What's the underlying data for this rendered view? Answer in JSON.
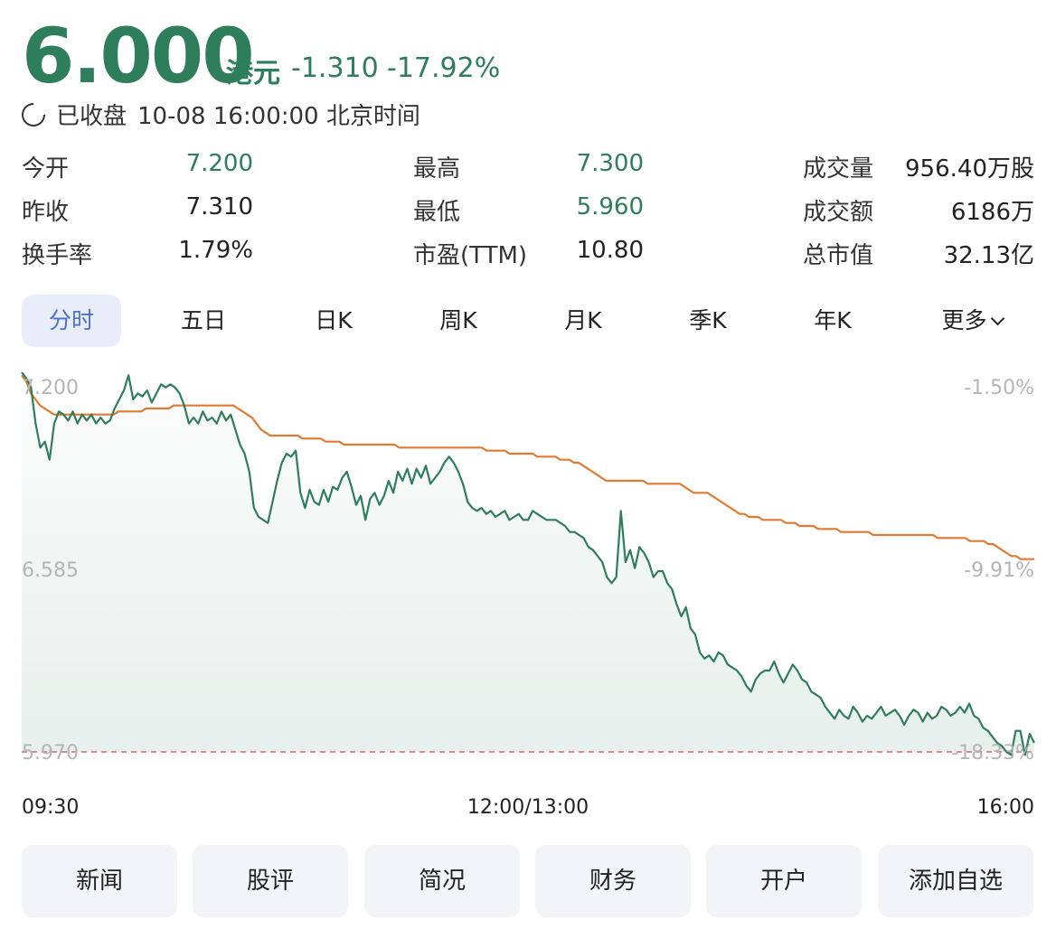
{
  "header": {
    "price": "6.000",
    "currency": "港元",
    "change": "-1.310",
    "change_pct": "-17.92%",
    "status": "已收盘",
    "datetime": "10-08 16:00:00 北京时间"
  },
  "stats": [
    {
      "label": "今开",
      "value": "7.200",
      "color": "#2e7d5b"
    },
    {
      "label": "最高",
      "value": "7.300",
      "color": "#2e7d5b"
    },
    {
      "label": "成交量",
      "value": "956.40万股",
      "color": "#222222"
    },
    {
      "label": "昨收",
      "value": "7.310",
      "color": "#222222"
    },
    {
      "label": "最低",
      "value": "5.960",
      "color": "#2e7d5b"
    },
    {
      "label": "成交额",
      "value": "6186万",
      "color": "#222222"
    },
    {
      "label": "换手率",
      "value": "1.79%",
      "color": "#222222"
    },
    {
      "label": "市盈(TTM)",
      "value": "10.80",
      "color": "#222222"
    },
    {
      "label": "总市值",
      "value": "32.13亿",
      "color": "#222222"
    }
  ],
  "tabs": [
    "分时",
    "五日",
    "日K",
    "周K",
    "月K",
    "季K",
    "年K",
    "更多"
  ],
  "active_tab": 0,
  "chart_data": {
    "type": "line",
    "x_labels": [
      "09:30",
      "12:00/13:00",
      "16:00"
    ],
    "y_left_labels": [
      "7.200",
      "6.585",
      "5.970"
    ],
    "y_right_labels": [
      "-1.50%",
      "-9.91%",
      "-18.33%"
    ],
    "ylim": [
      5.97,
      7.2
    ],
    "reference_price": 5.97,
    "series": [
      {
        "values": [
          7.23,
          7.21,
          7.18,
          7.06,
          6.98,
          7.0,
          6.94,
          7.06,
          7.1,
          7.09,
          7.07,
          7.1,
          7.06,
          7.09,
          7.07,
          7.09,
          7.06,
          7.08,
          7.06,
          7.07,
          7.11,
          7.14,
          7.17,
          7.22,
          7.14,
          7.16,
          7.15,
          7.17,
          7.13,
          7.16,
          7.19,
          7.18,
          7.19,
          7.18,
          7.16,
          7.12,
          7.06,
          7.08,
          7.06,
          7.1,
          7.07,
          7.08,
          7.06,
          7.1,
          7.07,
          7.09,
          7.04,
          6.99,
          6.96,
          6.9,
          6.78,
          6.75,
          6.74,
          6.73,
          6.8,
          6.87,
          6.93,
          6.96,
          6.95,
          6.97,
          6.83,
          6.78,
          6.84,
          6.8,
          6.79,
          6.84,
          6.8,
          6.85,
          6.84,
          6.88,
          6.9,
          6.85,
          6.79,
          6.82,
          6.74,
          6.81,
          6.83,
          6.79,
          6.82,
          6.87,
          6.83,
          6.9,
          6.87,
          6.91,
          6.86,
          6.91,
          6.88,
          6.92,
          6.86,
          6.88,
          6.9,
          6.93,
          6.95,
          6.93,
          6.9,
          6.86,
          6.8,
          6.78,
          6.77,
          6.78,
          6.76,
          6.77,
          6.75,
          6.76,
          6.77,
          6.74,
          6.75,
          6.76,
          6.74,
          6.74,
          6.77,
          6.76,
          6.75,
          6.74,
          6.74,
          6.74,
          6.73,
          6.72,
          6.7,
          6.7,
          6.69,
          6.68,
          6.65,
          6.64,
          6.62,
          6.6,
          6.55,
          6.53,
          6.55,
          6.77,
          6.6,
          6.64,
          6.58,
          6.65,
          6.63,
          6.6,
          6.55,
          6.57,
          6.57,
          6.53,
          6.51,
          6.46,
          6.42,
          6.45,
          6.38,
          6.36,
          6.3,
          6.28,
          6.29,
          6.27,
          6.3,
          6.29,
          6.26,
          6.25,
          6.24,
          6.22,
          6.19,
          6.17,
          6.21,
          6.23,
          6.24,
          6.24,
          6.27,
          6.23,
          6.2,
          6.23,
          6.26,
          6.24,
          6.21,
          6.2,
          6.17,
          6.16,
          6.15,
          6.12,
          6.1,
          6.08,
          6.11,
          6.09,
          6.08,
          6.12,
          6.1,
          6.07,
          6.09,
          6.08,
          6.1,
          6.12,
          6.09,
          6.1,
          6.11,
          6.09,
          6.06,
          6.09,
          6.11,
          6.1,
          6.07,
          6.1,
          6.08,
          6.09,
          6.12,
          6.11,
          6.09,
          6.1,
          6.12,
          6.1,
          6.13,
          6.09,
          6.08,
          6.05,
          6.04,
          6.02,
          6.0,
          5.99,
          5.97,
          5.96,
          6.04,
          6.04,
          5.96,
          6.03,
          6.0
        ]
      },
      {
        "values": [
          7.22,
          7.2,
          7.16,
          7.14,
          7.12,
          7.11,
          7.1,
          7.09,
          7.09,
          7.09,
          7.09,
          7.09,
          7.09,
          7.09,
          7.09,
          7.09,
          7.09,
          7.09,
          7.09,
          7.09,
          7.09,
          7.1,
          7.1,
          7.1,
          7.1,
          7.1,
          7.1,
          7.11,
          7.11,
          7.11,
          7.11,
          7.11,
          7.11,
          7.12,
          7.12,
          7.12,
          7.12,
          7.12,
          7.12,
          7.12,
          7.12,
          7.12,
          7.12,
          7.12,
          7.12,
          7.12,
          7.12,
          7.11,
          7.1,
          7.09,
          7.08,
          7.06,
          7.04,
          7.03,
          7.02,
          7.02,
          7.02,
          7.02,
          7.02,
          7.02,
          7.02,
          7.01,
          7.01,
          7.01,
          7.01,
          7.01,
          7.0,
          7.0,
          7.0,
          7.0,
          6.99,
          6.99,
          6.99,
          6.99,
          6.99,
          6.99,
          6.99,
          6.99,
          6.99,
          6.99,
          6.99,
          6.99,
          6.98,
          6.98,
          6.98,
          6.98,
          6.98,
          6.98,
          6.98,
          6.98,
          6.98,
          6.98,
          6.98,
          6.98,
          6.98,
          6.98,
          6.98,
          6.98,
          6.98,
          6.98,
          6.98,
          6.97,
          6.97,
          6.97,
          6.97,
          6.97,
          6.96,
          6.96,
          6.96,
          6.96,
          6.96,
          6.96,
          6.95,
          6.95,
          6.95,
          6.95,
          6.95,
          6.94,
          6.94,
          6.94,
          6.93,
          6.93,
          6.92,
          6.91,
          6.9,
          6.89,
          6.88,
          6.87,
          6.87,
          6.87,
          6.87,
          6.87,
          6.87,
          6.87,
          6.87,
          6.87,
          6.86,
          6.86,
          6.86,
          6.86,
          6.86,
          6.86,
          6.86,
          6.86,
          6.85,
          6.84,
          6.83,
          6.83,
          6.83,
          6.83,
          6.82,
          6.81,
          6.8,
          6.79,
          6.78,
          6.77,
          6.76,
          6.76,
          6.75,
          6.75,
          6.75,
          6.74,
          6.74,
          6.74,
          6.74,
          6.74,
          6.73,
          6.73,
          6.73,
          6.72,
          6.72,
          6.72,
          6.72,
          6.71,
          6.71,
          6.71,
          6.71,
          6.71,
          6.7,
          6.7,
          6.7,
          6.7,
          6.7,
          6.7,
          6.7,
          6.69,
          6.69,
          6.69,
          6.69,
          6.69,
          6.69,
          6.69,
          6.69,
          6.69,
          6.69,
          6.69,
          6.69,
          6.69,
          6.69,
          6.68,
          6.68,
          6.68,
          6.68,
          6.68,
          6.68,
          6.68,
          6.67,
          6.67,
          6.67,
          6.67,
          6.66,
          6.66,
          6.65,
          6.64,
          6.63,
          6.62,
          6.62,
          6.61,
          6.61,
          6.61,
          6.61
        ]
      }
    ],
    "colors": {
      "price": "#2e7d5b",
      "avg": "#e07a30",
      "ref": "#e08a8a"
    }
  },
  "buttons": [
    "新闻",
    "股评",
    "简况",
    "财务",
    "开户",
    "添加自选"
  ]
}
